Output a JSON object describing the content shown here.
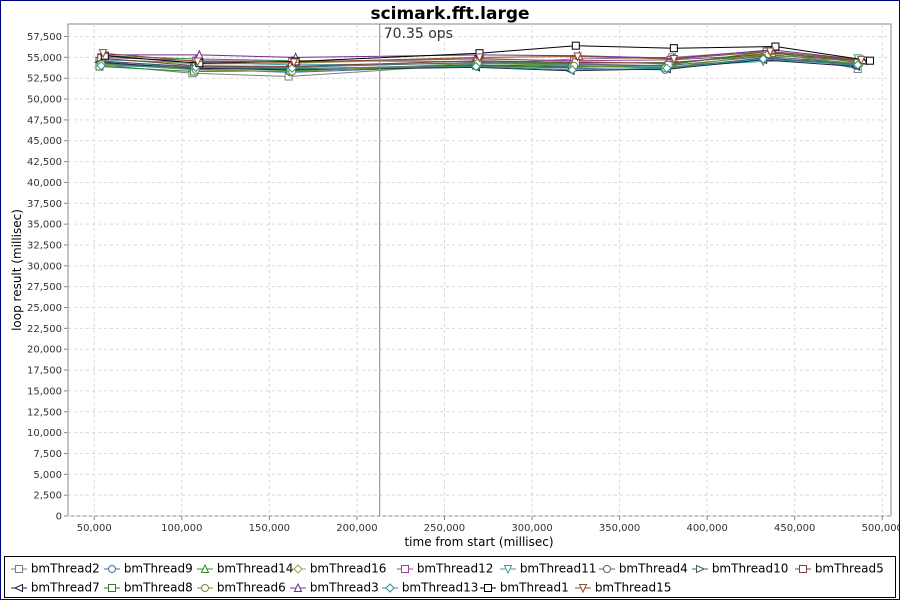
{
  "chart_data": {
    "type": "line",
    "title": "scimark.fft.large",
    "annotation": "70.35 ops",
    "annotation_x": 213000,
    "xlabel": "time from start (millisec)",
    "ylabel": "loop result (millisec)",
    "xlim": [
      35000,
      505000
    ],
    "ylim": [
      0,
      59000
    ],
    "x_ticks": [
      50000,
      100000,
      150000,
      200000,
      250000,
      300000,
      350000,
      400000,
      450000,
      500000
    ],
    "x_tick_labels": [
      "50,000",
      "100,000",
      "150,000",
      "200,000",
      "250,000",
      "300,000",
      "350,000",
      "400,000",
      "450,000",
      "500,000"
    ],
    "y_ticks": [
      0,
      2500,
      5000,
      7500,
      10000,
      12500,
      15000,
      17500,
      20000,
      22500,
      25000,
      27500,
      30000,
      32500,
      35000,
      37500,
      40000,
      42500,
      45000,
      47500,
      50000,
      52500,
      55000,
      57500
    ],
    "y_tick_labels": [
      "0",
      "2,500",
      "5,000",
      "7,500",
      "10,000",
      "12,500",
      "15,000",
      "17,500",
      "20,000",
      "22,500",
      "25,000",
      "27,500",
      "30,000",
      "32,500",
      "35,000",
      "37,500",
      "40,000",
      "42,500",
      "45,000",
      "47,500",
      "50,000",
      "52,500",
      "55,000",
      "57,500"
    ],
    "grid": true,
    "legend_position": "bottom",
    "series": [
      {
        "name": "bmThread2",
        "marker": "square",
        "color": "#7f7f7f",
        "points": [
          [
            53000,
            54100
          ],
          [
            106000,
            53100
          ],
          [
            161000,
            52700
          ],
          [
            269000,
            54200
          ],
          [
            324000,
            54800
          ],
          [
            380000,
            55000
          ],
          [
            435000,
            55800
          ],
          [
            486000,
            53600
          ]
        ]
      },
      {
        "name": "bmThread9",
        "marker": "circle",
        "color": "#3f6f9f",
        "points": [
          [
            53000,
            54300
          ],
          [
            107000,
            53600
          ],
          [
            162000,
            53200
          ],
          [
            268000,
            54000
          ],
          [
            323000,
            53700
          ],
          [
            376000,
            53500
          ],
          [
            433000,
            55000
          ],
          [
            485000,
            54000
          ]
        ]
      },
      {
        "name": "bmThread14",
        "marker": "triangle-up",
        "color": "#2f8f2f",
        "points": [
          [
            54000,
            55200
          ],
          [
            108000,
            54800
          ],
          [
            163000,
            54600
          ],
          [
            269000,
            54500
          ],
          [
            325000,
            54300
          ],
          [
            379000,
            54400
          ],
          [
            434000,
            55200
          ],
          [
            487000,
            54800
          ]
        ]
      },
      {
        "name": "bmThread16",
        "marker": "diamond",
        "color": "#9f9f3f",
        "points": [
          [
            55000,
            54800
          ],
          [
            109000,
            54200
          ],
          [
            164000,
            54300
          ],
          [
            270000,
            54900
          ],
          [
            326000,
            54500
          ],
          [
            380000,
            54200
          ],
          [
            436000,
            55600
          ],
          [
            488000,
            54500
          ]
        ]
      },
      {
        "name": "bmThread12",
        "marker": "square",
        "color": "#9f3f9f",
        "points": [
          [
            54000,
            55000
          ],
          [
            108000,
            54600
          ],
          [
            163000,
            54500
          ],
          [
            269000,
            54800
          ],
          [
            324000,
            54600
          ],
          [
            379000,
            54700
          ],
          [
            434000,
            55300
          ],
          [
            487000,
            54600
          ]
        ]
      },
      {
        "name": "bmThread11",
        "marker": "triangle-down",
        "color": "#3f9f9f",
        "points": [
          [
            54000,
            54700
          ],
          [
            108000,
            54400
          ],
          [
            163000,
            54100
          ],
          [
            268000,
            54300
          ],
          [
            324000,
            54100
          ],
          [
            378000,
            53900
          ],
          [
            432000,
            54500
          ],
          [
            486000,
            54900
          ]
        ]
      },
      {
        "name": "bmThread4",
        "marker": "circle",
        "color": "#5f5f7f",
        "points": [
          [
            54000,
            54500
          ],
          [
            107000,
            53900
          ],
          [
            162000,
            53800
          ],
          [
            268000,
            54400
          ],
          [
            323000,
            54200
          ],
          [
            377000,
            54000
          ],
          [
            433000,
            55100
          ],
          [
            486000,
            54300
          ]
        ]
      },
      {
        "name": "bmThread10",
        "marker": "triangle-right",
        "color": "#3f5f5f",
        "points": [
          [
            53000,
            54600
          ],
          [
            107000,
            53800
          ],
          [
            162000,
            53600
          ],
          [
            268000,
            54100
          ],
          [
            323000,
            53900
          ],
          [
            378000,
            53800
          ],
          [
            433000,
            54900
          ],
          [
            486000,
            54200
          ]
        ]
      },
      {
        "name": "bmThread5",
        "marker": "square",
        "color": "#7f3f3f",
        "points": [
          [
            54000,
            54900
          ],
          [
            108000,
            54000
          ],
          [
            163000,
            53900
          ],
          [
            269000,
            54600
          ],
          [
            325000,
            54400
          ],
          [
            379000,
            54300
          ],
          [
            437000,
            55500
          ],
          [
            490000,
            54600
          ]
        ]
      },
      {
        "name": "bmThread7",
        "marker": "triangle-left",
        "color": "#1f1f3f",
        "points": [
          [
            53000,
            54400
          ],
          [
            107000,
            53700
          ],
          [
            162000,
            53500
          ],
          [
            268000,
            53800
          ],
          [
            322000,
            53400
          ],
          [
            377000,
            53600
          ],
          [
            432000,
            54700
          ],
          [
            485000,
            53900
          ]
        ]
      },
      {
        "name": "bmThread8",
        "marker": "square",
        "color": "#2f7f2f",
        "points": [
          [
            53000,
            53900
          ],
          [
            107000,
            53300
          ],
          [
            162000,
            53400
          ],
          [
            268000,
            54000
          ],
          [
            323000,
            53800
          ],
          [
            378000,
            54100
          ],
          [
            434000,
            55700
          ],
          [
            486000,
            54400
          ]
        ]
      },
      {
        "name": "bmThread6",
        "marker": "circle",
        "color": "#6f8f2f",
        "points": [
          [
            54000,
            54200
          ],
          [
            108000,
            53500
          ],
          [
            163000,
            53300
          ],
          [
            269000,
            54300
          ],
          [
            324000,
            54000
          ],
          [
            376000,
            53700
          ],
          [
            435000,
            55400
          ],
          [
            487000,
            54200
          ]
        ]
      },
      {
        "name": "bmThread3",
        "marker": "triangle-up",
        "color": "#6f2f8f",
        "points": [
          [
            56000,
            55300
          ],
          [
            110000,
            55300
          ],
          [
            165000,
            55000
          ],
          [
            270000,
            55300
          ],
          [
            327000,
            55200
          ],
          [
            381000,
            54900
          ],
          [
            437000,
            55900
          ],
          [
            489000,
            54700
          ]
        ]
      },
      {
        "name": "bmThread13",
        "marker": "diamond",
        "color": "#2f8f8f",
        "points": [
          [
            54000,
            54000
          ],
          [
            108000,
            53800
          ],
          [
            163000,
            53700
          ],
          [
            268000,
            53900
          ],
          [
            323000,
            53500
          ],
          [
            377000,
            53700
          ],
          [
            432000,
            54800
          ],
          [
            486000,
            54100
          ]
        ]
      },
      {
        "name": "bmThread1",
        "marker": "square",
        "color": "#000000",
        "points": [
          [
            56000,
            55200
          ],
          [
            110000,
            54300
          ],
          [
            165000,
            54500
          ],
          [
            270000,
            55500
          ],
          [
            325000,
            56400
          ],
          [
            381000,
            56100
          ],
          [
            439000,
            56300
          ],
          [
            493000,
            54600
          ]
        ]
      },
      {
        "name": "bmThread15",
        "marker": "triangle-down",
        "color": "#8f4f2f",
        "points": [
          [
            55000,
            55500
          ],
          [
            109000,
            54500
          ],
          [
            164000,
            54400
          ],
          [
            270000,
            55000
          ],
          [
            326000,
            55100
          ],
          [
            381000,
            54800
          ],
          [
            436000,
            55700
          ],
          [
            488000,
            54700
          ]
        ]
      }
    ]
  }
}
